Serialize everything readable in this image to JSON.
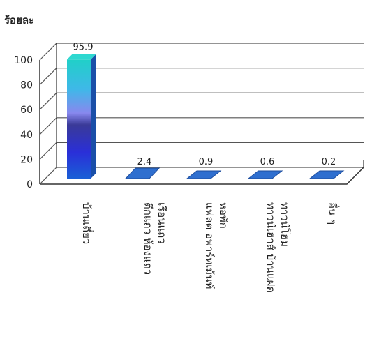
{
  "chart_data": {
    "type": "bar",
    "ylabel": "ร้อยละ",
    "ylim": [
      0,
      100
    ],
    "yticks": [
      "0",
      "20",
      "40",
      "60",
      "80",
      "100"
    ],
    "categories": [
      "บ้านเดี่ยว",
      "ตึกแถว ห้องแถว เรือนแถว",
      "แฟลต อพาร์ทเม้นท์ หอพัก",
      "ทาวน์เฮาส์ บ้านแฝด ทาวน์โฮม",
      "อื่น ๆ"
    ],
    "category_lines": [
      [
        "บ้านเดี่ยว"
      ],
      [
        "ตึกแถว ห้องแถว",
        "เรือนแถว"
      ],
      [
        "แฟลต อพาร์ทเม้นท์",
        "หอพัก"
      ],
      [
        "ทาวน์เฮาส์ บ้านแฝด",
        "ทาวน์โฮม"
      ],
      [
        "อื่น ๆ"
      ]
    ],
    "values": [
      95.9,
      2.4,
      0.9,
      0.6,
      0.2
    ],
    "value_labels": [
      "95.9",
      "2.4",
      "0.9",
      "0.6",
      "0.2"
    ],
    "grid": true,
    "three_d": true,
    "colors": {
      "bar_gradient": [
        "#1a5fd6",
        "#2a2fd8",
        "#3a3a98",
        "#8888ee",
        "#3fb8e8",
        "#20d0c8"
      ],
      "flat_bar": "#2f6fcf",
      "grid": "#555555",
      "axis": "#333333"
    }
  }
}
